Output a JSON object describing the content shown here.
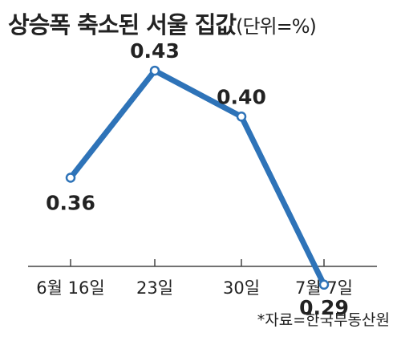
{
  "chart_data": {
    "type": "line",
    "title": "상승폭 축소된 서울 집값",
    "unit": "(단위=%)",
    "categories": [
      "6월 16일",
      "23일",
      "30일",
      "7월 7일"
    ],
    "series": [
      {
        "values": [
          0.36,
          0.43,
          0.4,
          0.29
        ]
      }
    ],
    "data_labels": [
      "0.36",
      "0.43",
      "0.40",
      "0.29"
    ],
    "ylim": [
      0.26,
      0.45
    ],
    "grid": false,
    "line_color": "#2e73b8",
    "marker_fill": "#ffffff"
  },
  "source": "*자료=한국부동산원"
}
